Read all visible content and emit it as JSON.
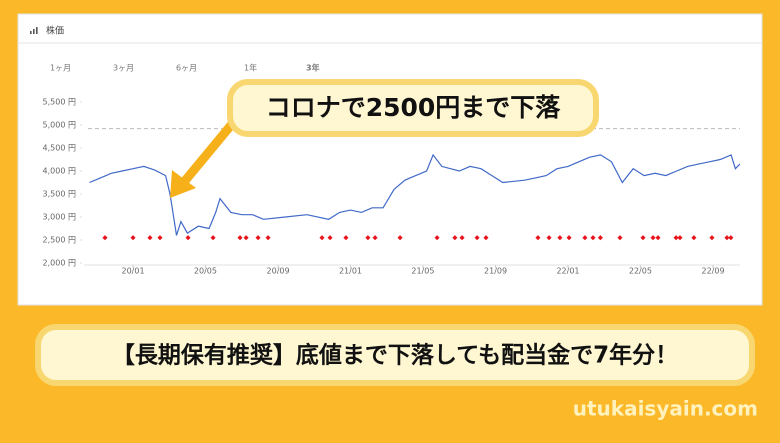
{
  "header": {
    "title": "株価"
  },
  "tabs": [
    {
      "label": "1ヶ月",
      "active": false
    },
    {
      "label": "3ヶ月",
      "active": false
    },
    {
      "label": "6ヶ月",
      "active": false
    },
    {
      "label": "1年",
      "active": false
    },
    {
      "label": "3年",
      "active": true
    }
  ],
  "chart_data": {
    "type": "line",
    "color": "#4169c8",
    "x": [
      2019.8,
      2019.85,
      2019.9,
      2019.95,
      2020.0,
      2020.05,
      2020.1,
      2020.15,
      2020.17,
      2020.18,
      2020.2,
      2020.22,
      2020.25,
      2020.3,
      2020.35,
      2020.38,
      2020.4,
      2020.45,
      2020.5,
      2020.55,
      2020.6,
      2020.7,
      2020.8,
      2020.9,
      2020.95,
      2021.0,
      2021.05,
      2021.1,
      2021.15,
      2021.2,
      2021.25,
      2021.3,
      2021.35,
      2021.38,
      2021.42,
      2021.5,
      2021.55,
      2021.6,
      2021.65,
      2021.7,
      2021.8,
      2021.85,
      2021.9,
      2021.95,
      2022.0,
      2022.05,
      2022.1,
      2022.15,
      2022.2,
      2022.25,
      2022.3,
      2022.35,
      2022.4,
      2022.45,
      2022.5,
      2022.55,
      2022.6,
      2022.65,
      2022.7,
      2022.75,
      2022.77,
      2022.79
    ],
    "values": [
      3750,
      3850,
      3950,
      4000,
      4050,
      4100,
      4020,
      3900,
      3500,
      3200,
      2600,
      2900,
      2650,
      2800,
      2750,
      3100,
      3400,
      3100,
      3050,
      3050,
      2950,
      3000,
      3050,
      2950,
      3100,
      3150,
      3100,
      3200,
      3200,
      3600,
      3800,
      3900,
      4000,
      4350,
      4100,
      4000,
      4100,
      4050,
      3900,
      3750,
      3800,
      3850,
      3900,
      4050,
      4100,
      4200,
      4300,
      4350,
      4200,
      3750,
      4050,
      3900,
      3950,
      3900,
      4000,
      4100,
      4150,
      4200,
      4250,
      4350,
      4050,
      4150
    ],
    "markers": {
      "color": "#e8141c",
      "x": [
        2019.871,
        2020.0,
        2020.078,
        2020.124,
        2020.253,
        2020.368,
        2020.492,
        2020.52,
        2020.575,
        2020.621,
        2020.869,
        2020.906,
        2020.979,
        2021.08,
        2021.113,
        2021.228,
        2021.398,
        2021.48,
        2021.513,
        2021.582,
        2021.623,
        2021.862,
        2021.913,
        2021.963,
        2022.005,
        2022.078,
        2022.115,
        2022.149,
        2022.239,
        2022.345,
        2022.391,
        2022.414,
        2022.497,
        2022.515,
        2022.579,
        2022.662,
        2022.731,
        2022.749
      ],
      "values": [
        2550,
        2550,
        2550,
        2550,
        2550,
        2550,
        2550,
        2550,
        2550,
        2550,
        2550,
        2550,
        2550,
        2550,
        2550,
        2550,
        2550,
        2550,
        2550,
        2550,
        2550,
        2550,
        2550,
        2550,
        2550,
        2550,
        2550,
        2550,
        2550,
        2550,
        2550,
        2550,
        2550,
        2550,
        2550,
        2550,
        2550,
        2550
      ]
    },
    "reference_line": 4920,
    "xlim": [
      2019.793,
      2022.791
    ],
    "xticks": [
      {
        "value": 2020.0,
        "label": "20/01"
      },
      {
        "value": 2020.333,
        "label": "20/05"
      },
      {
        "value": 2020.667,
        "label": "20/09"
      },
      {
        "value": 2021.0,
        "label": "21/01"
      },
      {
        "value": 2021.333,
        "label": "21/05"
      },
      {
        "value": 2021.667,
        "label": "21/09"
      },
      {
        "value": 2022.0,
        "label": "22/01"
      },
      {
        "value": 2022.333,
        "label": "22/05"
      },
      {
        "value": 2022.667,
        "label": "22/09"
      }
    ],
    "ylim": [
      2000,
      5500
    ],
    "yticks": [
      {
        "value": 2000,
        "label": "2,000 円"
      },
      {
        "value": 2500,
        "label": "2,500 円"
      },
      {
        "value": 3000,
        "label": "3,000 円"
      },
      {
        "value": 3500,
        "label": "3,500 円"
      },
      {
        "value": 4000,
        "label": "4,000 円"
      },
      {
        "value": 4500,
        "label": "4,500 円"
      },
      {
        "value": 5000,
        "label": "5,000 円"
      },
      {
        "value": 5500,
        "label": "5,500 円"
      }
    ]
  },
  "callout": "コロナで2500円まで下落",
  "banner": "【長期保有推奨】底値まで下落しても配当金で7年分！",
  "watermark": "utukaisyain.com"
}
